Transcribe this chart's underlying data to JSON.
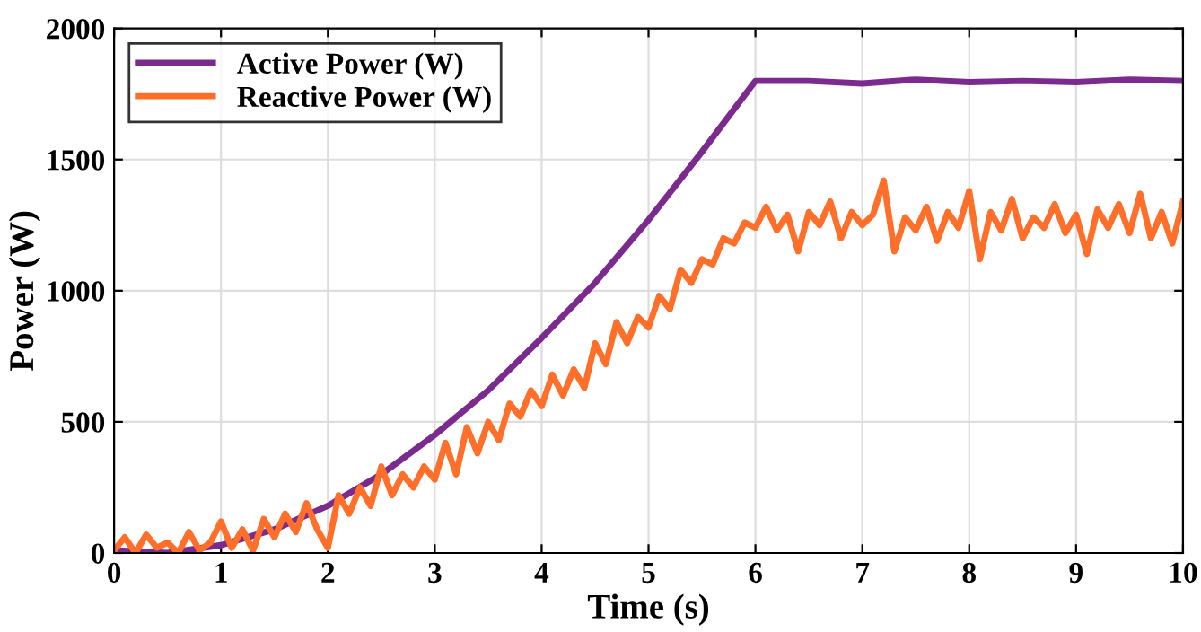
{
  "chart_data": {
    "type": "line",
    "xlabel": "Time (s)",
    "ylabel": "Power (W)",
    "xlim": [
      0,
      10
    ],
    "ylim": [
      0,
      2000
    ],
    "xticks": [
      0,
      1,
      2,
      3,
      4,
      5,
      6,
      7,
      8,
      9,
      10
    ],
    "yticks": [
      0,
      500,
      1000,
      1500,
      2000
    ],
    "grid": true,
    "legend": "top left",
    "line_style": "solid",
    "series": [
      {
        "name": "Active Power (W)",
        "color": "#7b2a8e",
        "x": [
          0,
          0.5,
          1,
          1.5,
          2,
          2.5,
          3,
          3.5,
          4,
          4.5,
          5,
          5.5,
          6,
          6.5,
          7,
          7.5,
          8,
          8.5,
          9,
          9.5,
          10
        ],
        "values": [
          10,
          0,
          30,
          90,
          180,
          300,
          450,
          620,
          820,
          1030,
          1270,
          1530,
          1800,
          1800,
          1790,
          1805,
          1795,
          1800,
          1795,
          1805,
          1800
        ]
      },
      {
        "name": "Reactive Power (W)",
        "color": "#ff6f2a",
        "x": [
          0,
          0.1,
          0.2,
          0.3,
          0.4,
          0.5,
          0.6,
          0.7,
          0.8,
          0.9,
          1,
          1.1,
          1.2,
          1.3,
          1.4,
          1.5,
          1.6,
          1.7,
          1.8,
          1.9,
          2,
          2.1,
          2.2,
          2.3,
          2.4,
          2.5,
          2.6,
          2.7,
          2.8,
          2.9,
          3,
          3.1,
          3.2,
          3.3,
          3.4,
          3.5,
          3.6,
          3.7,
          3.8,
          3.9,
          4,
          4.1,
          4.2,
          4.3,
          4.4,
          4.5,
          4.6,
          4.7,
          4.8,
          4.9,
          5,
          5.1,
          5.2,
          5.3,
          5.4,
          5.5,
          5.6,
          5.7,
          5.8,
          5.9,
          6,
          6.1,
          6.2,
          6.3,
          6.4,
          6.5,
          6.6,
          6.7,
          6.8,
          6.9,
          7,
          7.1,
          7.2,
          7.3,
          7.4,
          7.5,
          7.6,
          7.7,
          7.8,
          7.9,
          8,
          8.1,
          8.2,
          8.3,
          8.4,
          8.5,
          8.6,
          8.7,
          8.8,
          8.9,
          9,
          9.1,
          9.2,
          9.3,
          9.4,
          9.5,
          9.6,
          9.7,
          9.8,
          9.9,
          10
        ],
        "values": [
          10,
          60,
          0,
          70,
          20,
          40,
          0,
          80,
          10,
          40,
          120,
          20,
          90,
          10,
          130,
          60,
          150,
          80,
          190,
          90,
          20,
          220,
          150,
          250,
          180,
          330,
          220,
          300,
          250,
          330,
          280,
          420,
          300,
          480,
          380,
          500,
          430,
          570,
          520,
          620,
          560,
          680,
          600,
          700,
          630,
          800,
          720,
          880,
          800,
          900,
          860,
          980,
          930,
          1080,
          1030,
          1120,
          1100,
          1200,
          1180,
          1260,
          1240,
          1320,
          1230,
          1290,
          1150,
          1300,
          1250,
          1340,
          1200,
          1300,
          1250,
          1290,
          1420,
          1150,
          1280,
          1230,
          1320,
          1190,
          1300,
          1240,
          1380,
          1120,
          1300,
          1230,
          1350,
          1200,
          1280,
          1240,
          1330,
          1220,
          1290,
          1140,
          1310,
          1240,
          1330,
          1220,
          1370,
          1200,
          1300,
          1180,
          1340
        ]
      }
    ]
  }
}
